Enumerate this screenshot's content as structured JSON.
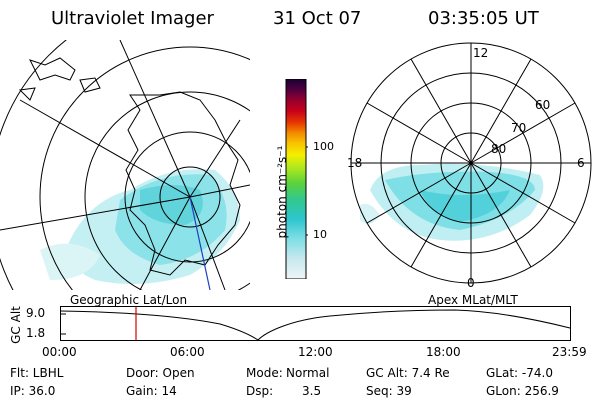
{
  "header": {
    "instrument": "Ultraviolet Imager",
    "date": "31 Oct 07",
    "time": "03:35:05 UT"
  },
  "colors": {
    "aurora": "#7fdfe6",
    "aurora_dark": "#2ec5cf",
    "cursor_line": "#d40000",
    "track_line": "#2040c0"
  },
  "colorbar": {
    "unit_label": "photon cm⁻²s⁻¹",
    "ticks": [
      "100",
      "10"
    ],
    "scale": "log",
    "colors": [
      "#e9f3f5",
      "#c8e8ee",
      "#7fdfe6",
      "#2ec5cf",
      "#31c98a",
      "#5ed13a",
      "#a8e620",
      "#f4f000",
      "#f7c200",
      "#f48a00",
      "#e83a00",
      "#c8001a",
      "#900030",
      "#4a0040",
      "#1a0030"
    ]
  },
  "panels": {
    "left_label": "Geographic Lat/Lon",
    "right_label": "Apex MLat/MLT"
  },
  "polar_plot": {
    "mlt_labels": [
      "12",
      "18",
      "6",
      "0"
    ],
    "mlat_labels": [
      "60",
      "70",
      "80"
    ]
  },
  "altitude_plot": {
    "ylabel": "GC Alt",
    "ytick_top": "9.0",
    "ytick_bottom": "1.8",
    "xticks": [
      "00:00",
      "06:00",
      "12:00",
      "18:00",
      "23:59"
    ]
  },
  "info": {
    "filter": "Flt: LBHL",
    "door": "Door: Open",
    "mode_label": "Mode:",
    "mode_value": "Normal",
    "gc_alt": "GC Alt: 7.4 Re",
    "glat": "GLat: -74.0",
    "ip": "IP: 36.0",
    "gain": "Gain: 14",
    "dsp_label": "Dsp:",
    "dsp_value": "3.5",
    "seq": "Seq: 39",
    "glon": "GLon: 256.9"
  }
}
